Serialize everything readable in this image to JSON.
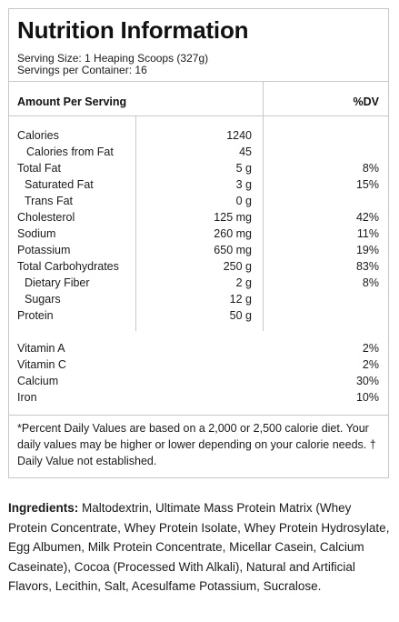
{
  "panel": {
    "title": "Nutrition Information",
    "serving_size": "Serving Size: 1 Heaping Scoops (327g)",
    "servings_per_container": "Servings per Container: 16",
    "header_amount": "Amount Per Serving",
    "header_dv": "%DV"
  },
  "nutrients": [
    {
      "name": "Calories",
      "amount": "1240",
      "dv": ""
    },
    {
      "name": "Calories from Fat",
      "amount": "45",
      "dv": ""
    },
    {
      "name": "Total Fat",
      "amount": "5 g",
      "dv": "8%"
    },
    {
      "name": "Saturated Fat",
      "amount": "3 g",
      "dv": "15%"
    },
    {
      "name": "Trans Fat",
      "amount": "0 g",
      "dv": ""
    },
    {
      "name": "Cholesterol",
      "amount": "125 mg",
      "dv": "42%"
    },
    {
      "name": "Sodium",
      "amount": "260 mg",
      "dv": "11%"
    },
    {
      "name": "Potassium",
      "amount": "650 mg",
      "dv": "19%"
    },
    {
      "name": "Total Carbohydrates",
      "amount": "250 g",
      "dv": "83%"
    },
    {
      "name": "Dietary Fiber",
      "amount": "2 g",
      "dv": "8%"
    },
    {
      "name": "Sugars",
      "amount": "12 g",
      "dv": ""
    },
    {
      "name": "Protein",
      "amount": "50 g",
      "dv": ""
    }
  ],
  "vitamins": [
    {
      "name": "Vitamin A",
      "dv": "2%"
    },
    {
      "name": "Vitamin C",
      "dv": "2%"
    },
    {
      "name": "Calcium",
      "dv": "30%"
    },
    {
      "name": "Iron",
      "dv": "10%"
    }
  ],
  "footnote": "*Percent Daily Values are based on a 2,000 or 2,500 calorie diet. Your daily values may be higher or lower depending on your calorie needs. † Daily Value not established.",
  "ingredients": {
    "label": "Ingredients:",
    "text": " Maltodextrin, Ultimate Mass Protein Matrix (Whey Protein Concentrate, Whey Protein Isolate, Whey Protein Hydrosylate, Egg Albumen, Milk Protein Concentrate, Micellar Casein, Calcium Caseinate), Cocoa (Processed With Alkali), Natural and Artificial Flavors, Lecithin, Salt, Acesulfame Potassium, Sucralose."
  }
}
